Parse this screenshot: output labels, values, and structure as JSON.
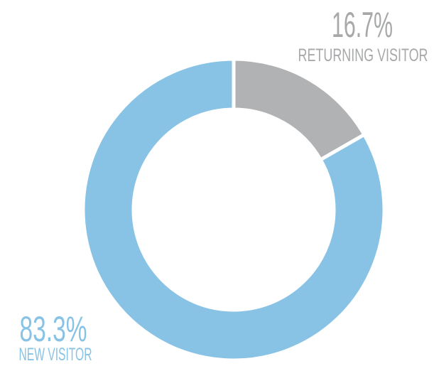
{
  "chart_data": {
    "type": "donut",
    "categories": [
      "RETURNING VISITOR",
      "NEW VISITOR"
    ],
    "values": [
      16.7,
      83.3
    ],
    "value_labels": [
      "16.7%",
      "83.3%"
    ],
    "colors": [
      "#b1b2b4",
      "#88c3e6"
    ]
  }
}
